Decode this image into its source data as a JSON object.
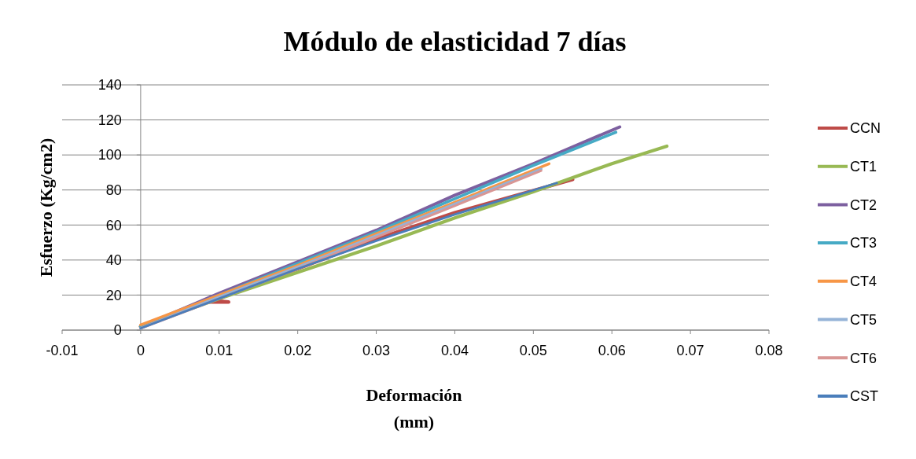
{
  "chart_data": {
    "type": "line",
    "title": "Módulo de elasticidad 7 días",
    "xlabel": "Deformación (mm)",
    "ylabel": "Esfuerzo  (Kg/cm2)",
    "xlim": [
      -0.01,
      0.08
    ],
    "xticks": [
      -0.01,
      0,
      0.01,
      0.02,
      0.03,
      0.04,
      0.05,
      0.06,
      0.07,
      0.08
    ],
    "ylim": [
      0,
      140
    ],
    "yticks": [
      0,
      20,
      40,
      60,
      80,
      100,
      120,
      140
    ],
    "grid": "y",
    "legend": "right",
    "marker": "none",
    "line_style": "solid",
    "series": [
      {
        "name": "CCN",
        "color": "#be4b48",
        "x": [
          0,
          0.005,
          0.008,
          0.0112,
          0.009,
          0.02,
          0.03,
          0.04,
          0.055
        ],
        "values": [
          2,
          11,
          16,
          16,
          17,
          35,
          52,
          67,
          86
        ]
      },
      {
        "name": "CT1",
        "color": "#98b954",
        "x": [
          0,
          0.01,
          0.02,
          0.03,
          0.04,
          0.05,
          0.06,
          0.067
        ],
        "values": [
          2,
          18,
          33,
          48,
          64,
          79,
          95,
          105
        ]
      },
      {
        "name": "CT2",
        "color": "#7d60a0",
        "x": [
          0,
          0.01,
          0.02,
          0.03,
          0.04,
          0.05,
          0.061
        ],
        "values": [
          2,
          21,
          39,
          57,
          77,
          95,
          116
        ]
      },
      {
        "name": "CT3",
        "color": "#46aac5",
        "x": [
          0,
          0.01,
          0.02,
          0.03,
          0.04,
          0.05,
          0.0605
        ],
        "values": [
          2,
          20,
          38,
          56,
          75,
          94,
          113
        ]
      },
      {
        "name": "CT4",
        "color": "#f79646",
        "x": [
          0,
          0.01,
          0.02,
          0.03,
          0.04,
          0.052
        ],
        "values": [
          3,
          20,
          37,
          55,
          73,
          95
        ]
      },
      {
        "name": "CT5",
        "color": "#95b3d7",
        "x": [
          0,
          0.01,
          0.02,
          0.03,
          0.04,
          0.051
        ],
        "values": [
          1,
          19,
          36,
          54,
          72,
          92
        ]
      },
      {
        "name": "CT6",
        "color": "#d99694",
        "x": [
          0,
          0.01,
          0.02,
          0.03,
          0.04,
          0.051
        ],
        "values": [
          1,
          18,
          35,
          53,
          71,
          91
        ]
      },
      {
        "name": "CST",
        "color": "#4a7ebb",
        "x": [
          0,
          0.01,
          0.02,
          0.03,
          0.04,
          0.053
        ],
        "values": [
          1,
          18,
          35,
          51,
          66,
          84
        ]
      }
    ]
  }
}
